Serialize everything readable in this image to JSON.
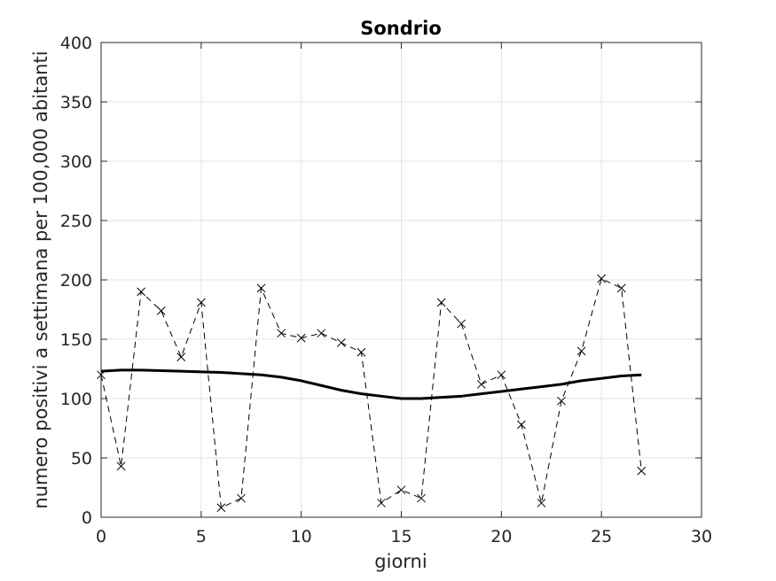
{
  "chart_data": {
    "type": "line",
    "title": "Sondrio",
    "xlabel": "giorni",
    "ylabel": "numero positivi a settimana per 100,000 abitanti",
    "xlim": [
      0,
      30
    ],
    "ylim": [
      0,
      400
    ],
    "xticks": [
      0,
      5,
      10,
      15,
      20,
      25,
      30
    ],
    "yticks": [
      0,
      50,
      100,
      150,
      200,
      250,
      300,
      350,
      400
    ],
    "grid": true,
    "legend": false,
    "series": [
      {
        "style": "dashed-x-markers",
        "color": "#000000",
        "x": [
          0,
          1,
          2,
          3,
          4,
          5,
          6,
          7,
          8,
          9,
          10,
          11,
          12,
          13,
          14,
          15,
          16,
          17,
          18,
          19,
          20,
          21,
          22,
          23,
          24,
          25,
          26,
          27
        ],
        "values": [
          120,
          43,
          190,
          174,
          135,
          181,
          8,
          16,
          193,
          155,
          151,
          155,
          147,
          139,
          12,
          23,
          16,
          181,
          163,
          112,
          120,
          78,
          12,
          98,
          140,
          201,
          193,
          39
        ]
      },
      {
        "style": "solid-thick",
        "color": "#000000",
        "x": [
          0,
          1,
          2,
          3,
          4,
          5,
          6,
          7,
          8,
          9,
          10,
          11,
          12,
          13,
          14,
          15,
          16,
          17,
          18,
          19,
          20,
          21,
          22,
          23,
          24,
          25,
          26,
          27
        ],
        "values": [
          123,
          124,
          124,
          123.5,
          123,
          122.5,
          122,
          121,
          120,
          118,
          115,
          111,
          107,
          104,
          102,
          100,
          100,
          101,
          102,
          104,
          106,
          108,
          110,
          112,
          115,
          117,
          119,
          120
        ]
      }
    ]
  }
}
